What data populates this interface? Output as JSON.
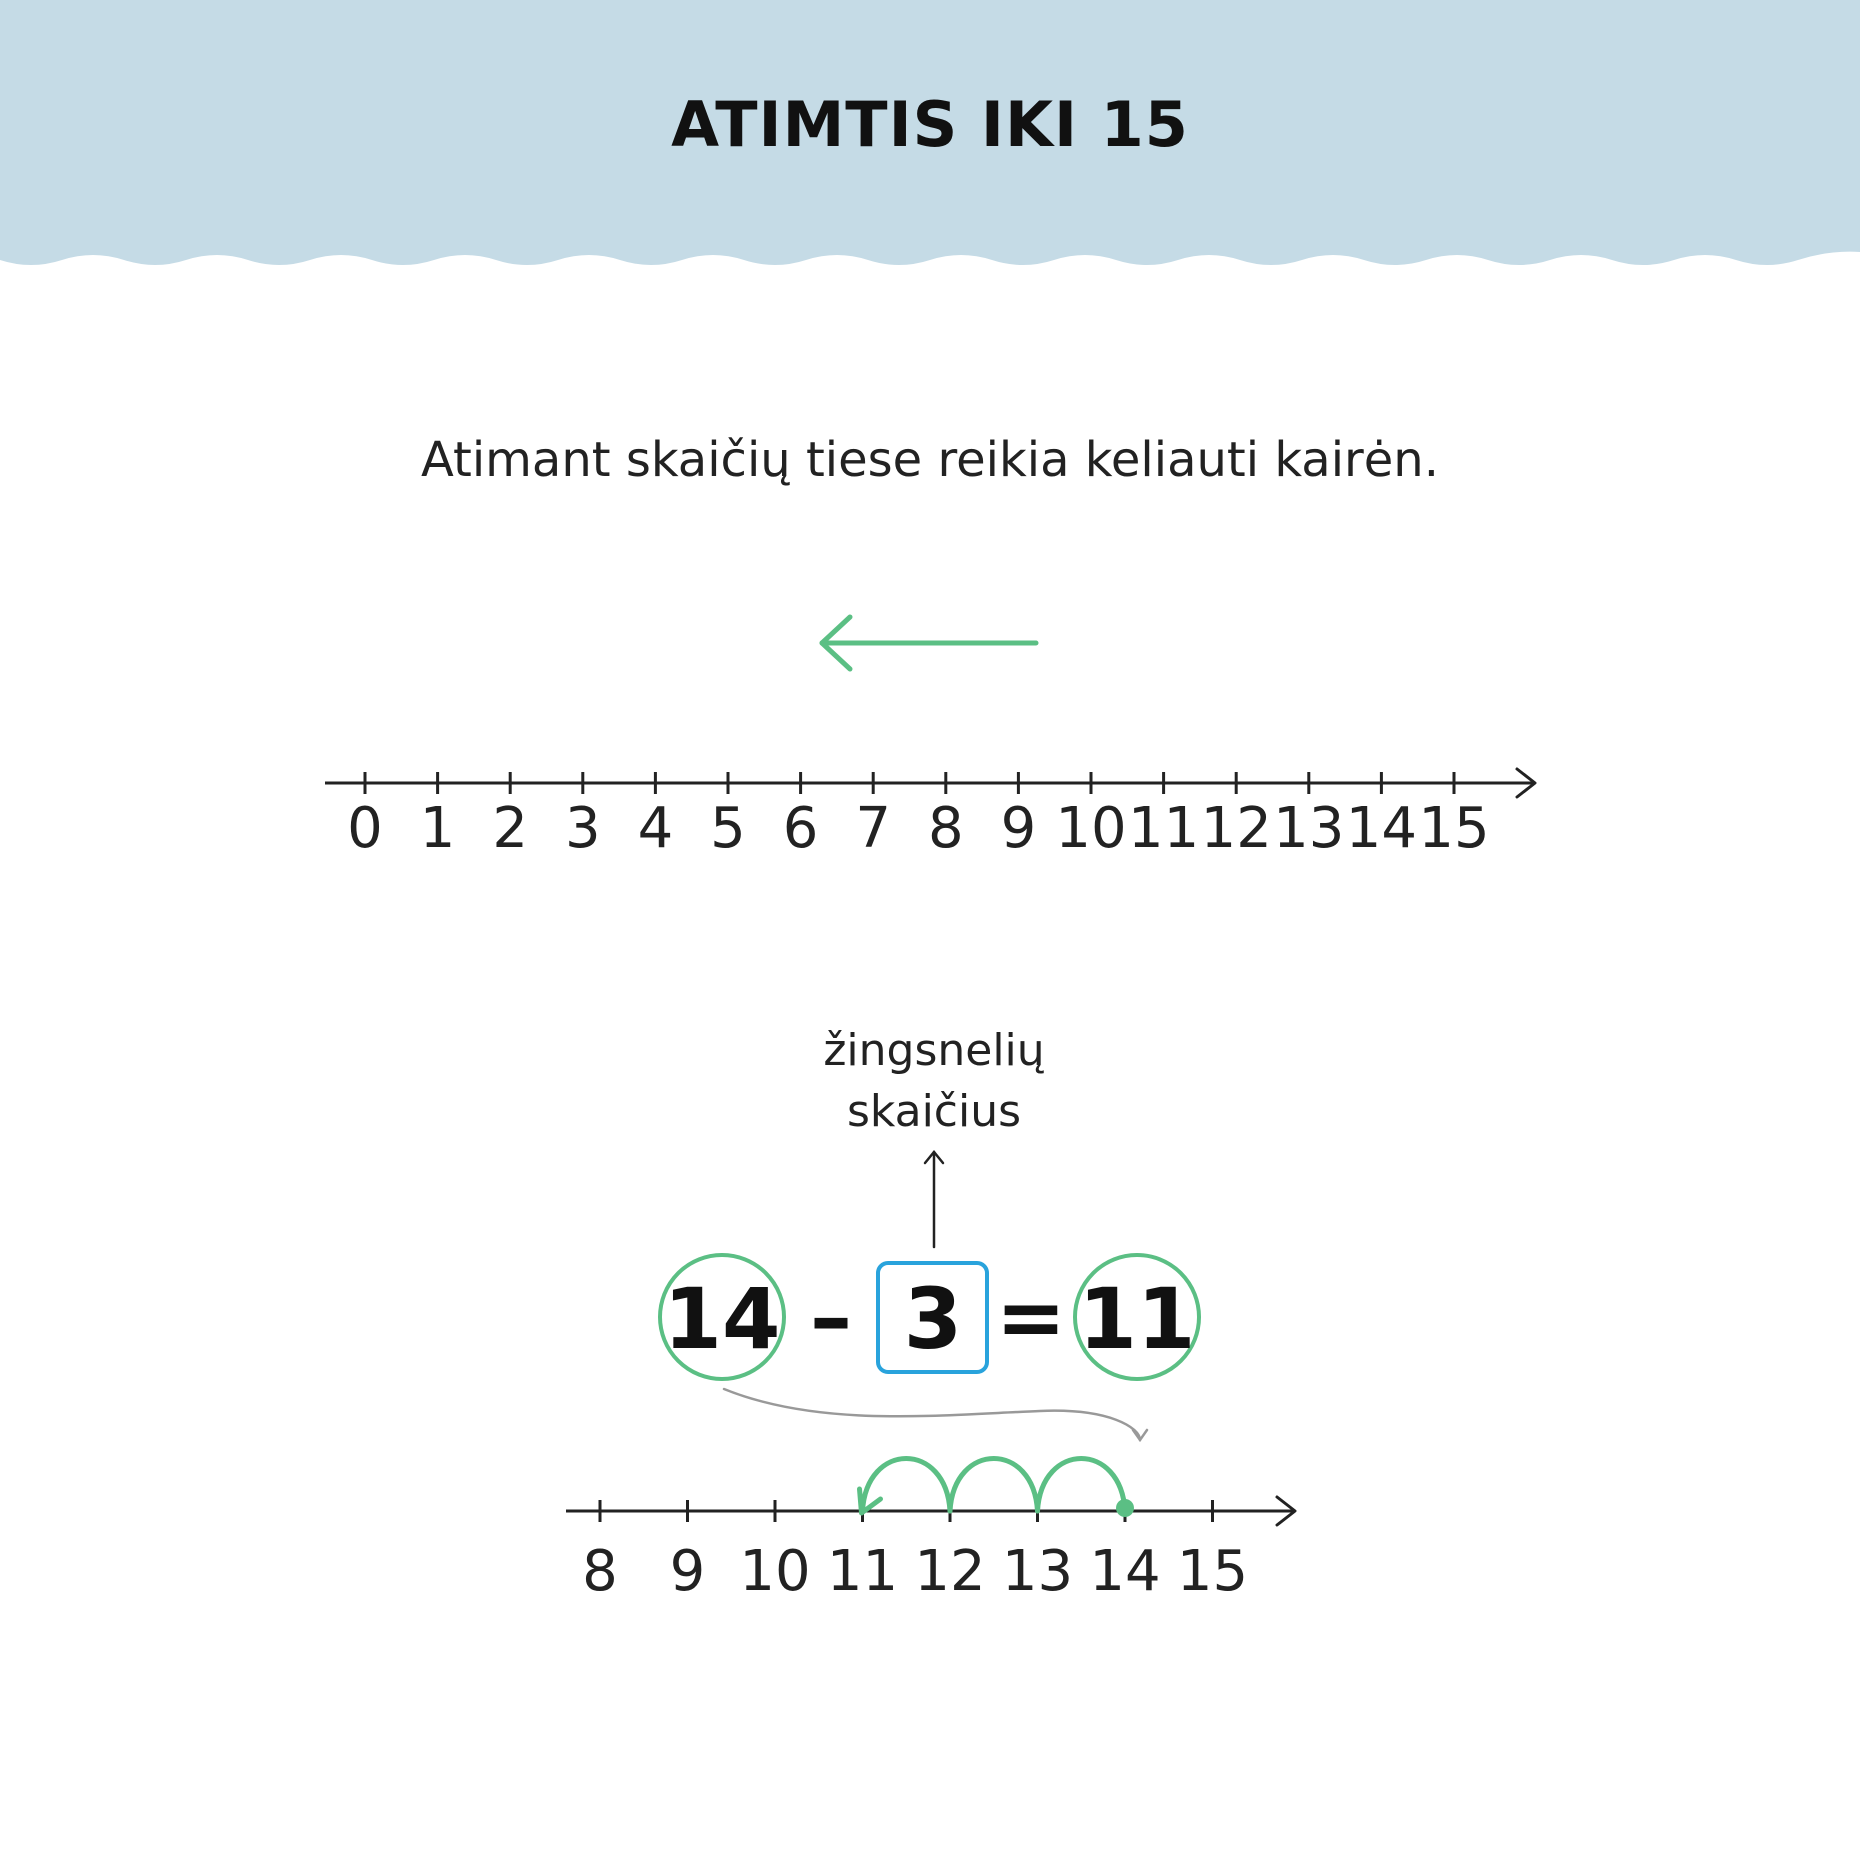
{
  "header": {
    "title": "ATIMTIS IKI 15",
    "band_color": "#c5dbe6"
  },
  "intro": {
    "text": "Atimant skaičių tiese reikia keliauti kairėn."
  },
  "direction_arrow": {
    "direction": "left",
    "color": "#5bbf84"
  },
  "number_line_full": {
    "ticks": [
      "0",
      "1",
      "2",
      "3",
      "4",
      "5",
      "6",
      "7",
      "8",
      "9",
      "10",
      "11",
      "12",
      "13",
      "14",
      "15"
    ]
  },
  "equation": {
    "minuend": "14",
    "operator_minus": "–",
    "subtrahend": "3",
    "operator_equals": "=",
    "difference": "11",
    "note_line1": "žingsnelių",
    "note_line2": "skaičius",
    "circle_color": "#5bbf84",
    "box_color": "#29a3dc"
  },
  "number_line_short": {
    "ticks": [
      "8",
      "9",
      "10",
      "11",
      "12",
      "13",
      "14",
      "15"
    ],
    "start": "14",
    "hops": 3,
    "end": "11",
    "hop_color": "#5bbf84"
  }
}
